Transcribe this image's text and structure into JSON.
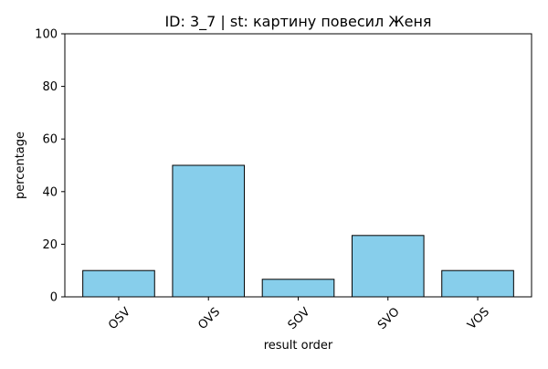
{
  "chart_data": {
    "type": "bar",
    "title": "ID: 3_7 | st: картину повесил Женя",
    "xlabel": "result order",
    "ylabel": "percentage",
    "categories": [
      "OSV",
      "OVS",
      "SOV",
      "SVO",
      "VOS"
    ],
    "values": [
      10,
      50,
      6.67,
      23.33,
      10
    ],
    "ylim": [
      0,
      100
    ],
    "yticks": [
      "0",
      "20",
      "40",
      "60",
      "80",
      "100"
    ],
    "grid": false,
    "legend": "none",
    "colors": {
      "bar_fill": "#87CEEB",
      "bar_edge": "#000000",
      "axis": "#000000",
      "background": "#ffffff"
    }
  }
}
